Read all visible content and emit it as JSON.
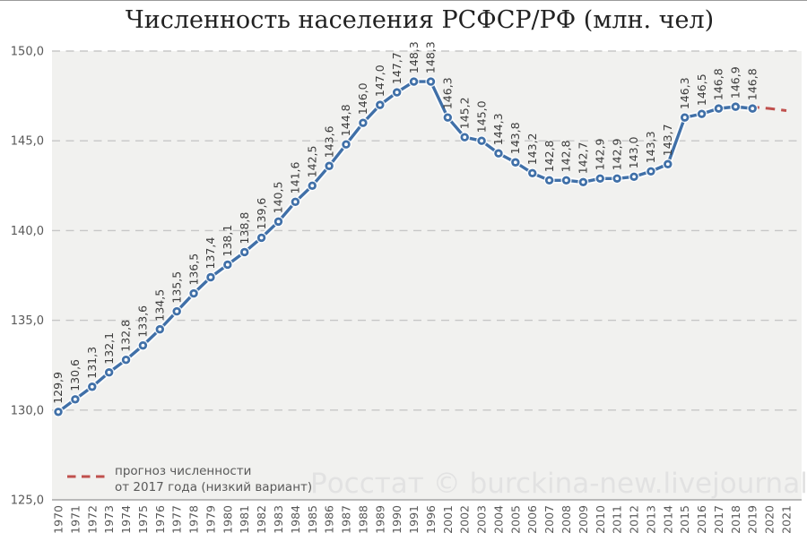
{
  "title": "Численность населения РСФСР/РФ (млн. чел)",
  "watermark": "Росстат © burckina-new.livejournal.com",
  "legend": {
    "line1": "прогноз численности",
    "line2": "от 2017 года (низкий вариант)"
  },
  "colors": {
    "series_line": "#4070a8",
    "forecast_line": "#c0504d",
    "grid_line": "#c7c7c7",
    "axis_line": "#a6a6a6",
    "plot_background": "#f1f1ef",
    "page_background": "#ffffff",
    "data_label_text": "#3d3d3d",
    "axis_label_text": "#595959",
    "title_text": "#212121",
    "watermark_text": "#e2e2e2",
    "legend_text": "#595959",
    "marker_center": "#ffffff"
  },
  "chart_data": {
    "type": "line",
    "title": "Численность населения РСФСР/РФ (млн. чел)",
    "categories": [
      "1970",
      "1971",
      "1972",
      "1973",
      "1974",
      "1975",
      "1976",
      "1977",
      "1978",
      "1979",
      "1980",
      "1981",
      "1982",
      "1983",
      "1984",
      "1985",
      "1986",
      "1987",
      "1988",
      "1989",
      "1990",
      "1991",
      "1996",
      "2001",
      "2002",
      "2003",
      "2004",
      "2005",
      "2006",
      "2007",
      "2008",
      "2009",
      "2010",
      "2011",
      "2012",
      "2013",
      "2014",
      "2015",
      "2016",
      "2017",
      "2018",
      "2019",
      "2020",
      "2021"
    ],
    "series": [
      {
        "name": "численность населения",
        "values": [
          129.9,
          130.6,
          131.3,
          132.1,
          132.8,
          133.6,
          134.5,
          135.5,
          136.5,
          137.4,
          138.1,
          138.8,
          139.6,
          140.5,
          141.6,
          142.5,
          143.6,
          144.8,
          146.0,
          147.0,
          147.7,
          148.3,
          148.3,
          146.3,
          145.2,
          145.0,
          144.3,
          143.8,
          143.2,
          142.8,
          142.8,
          142.7,
          142.9,
          142.9,
          143.0,
          143.3,
          143.7,
          146.3,
          146.5,
          146.8,
          146.9,
          146.8,
          null,
          null
        ]
      },
      {
        "name": "прогноз численности от 2017 года (низкий вариант)",
        "start_index": 39,
        "style": "dashed",
        "values": [
          146.8,
          146.9,
          146.88,
          146.8,
          146.68
        ]
      }
    ],
    "ylim": [
      125,
      150
    ],
    "y_ticks": [
      {
        "value": 150,
        "label": "150,0"
      },
      {
        "value": 145,
        "label": "145,0"
      },
      {
        "value": 140,
        "label": "140,0"
      },
      {
        "value": 135,
        "label": "135,0"
      },
      {
        "value": 130,
        "label": "130,0"
      },
      {
        "value": 125,
        "label": "125,0"
      }
    ],
    "grid": "horizontal-dashed",
    "legend_position": "bottom-left",
    "data_label_format": "decimal-comma"
  }
}
